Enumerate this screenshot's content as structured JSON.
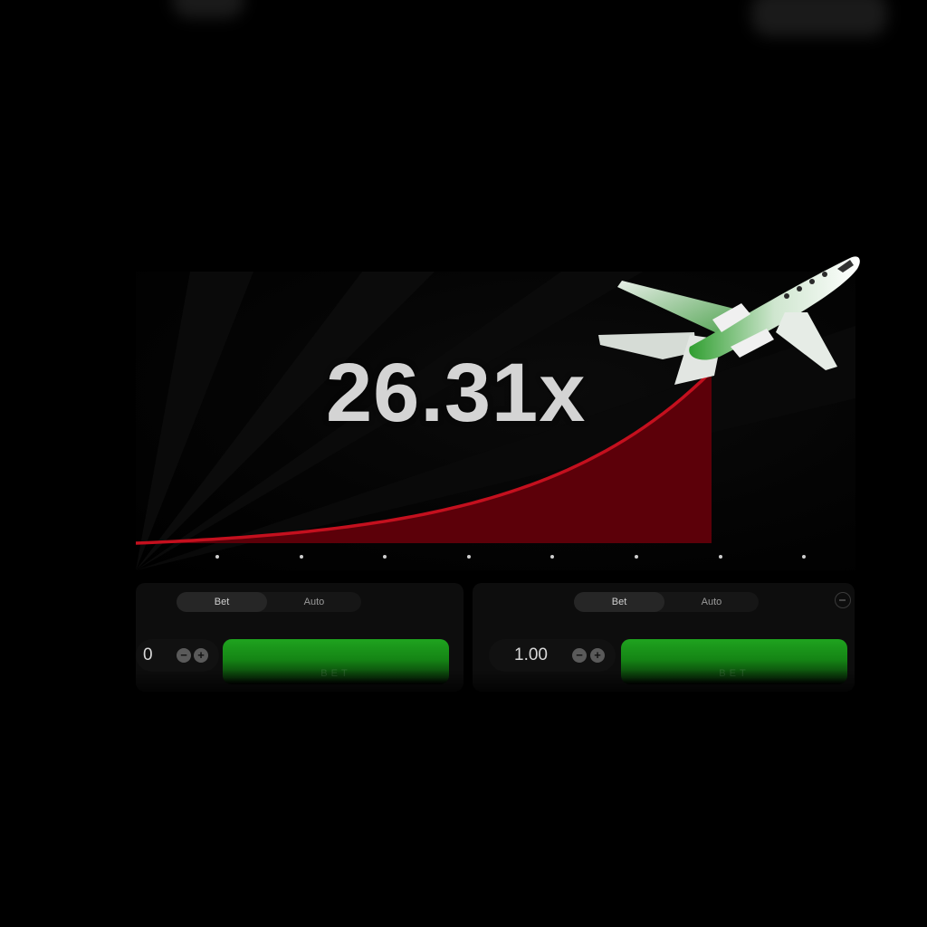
{
  "game": {
    "multiplier": "26.31x",
    "curve_color": "#c4101e",
    "fill_color": "#5c0009",
    "plane_accent": "#2f9e2f",
    "axis_dot_count": 8
  },
  "bet_panels": [
    {
      "tab_bet": "Bet",
      "tab_auto": "Auto",
      "amount": "0",
      "button_label": "BET",
      "button_color": "#1a9a1a"
    },
    {
      "tab_bet": "Bet",
      "tab_auto": "Auto",
      "amount": "1.00",
      "button_label": "BET",
      "button_color": "#1a9a1a"
    }
  ],
  "icons": {
    "plane": "jet-plane-icon",
    "minus": "minus-icon",
    "plus": "plus-icon",
    "remove_panel": "minus-circle-icon"
  }
}
